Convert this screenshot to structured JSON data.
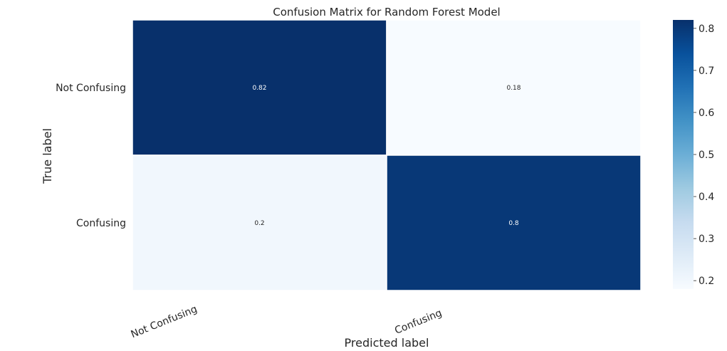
{
  "chart_data": {
    "type": "heatmap",
    "title": "Confusion Matrix for Random Forest Model",
    "xlabel": "Predicted label",
    "ylabel": "True label",
    "x_categories": [
      "Not Confusing",
      "Confusing"
    ],
    "y_categories": [
      "Not Confusing",
      "Confusing"
    ],
    "values": [
      [
        0.82,
        0.18
      ],
      [
        0.2,
        0.8
      ]
    ],
    "annotations": [
      [
        "0.82",
        "0.18"
      ],
      [
        "0.2",
        "0.8"
      ]
    ],
    "colorbar": {
      "range": [
        0.18,
        0.82
      ],
      "ticks": [
        "0.2",
        "0.3",
        "0.4",
        "0.5",
        "0.6",
        "0.7",
        "0.8"
      ],
      "tick_values": [
        0.2,
        0.3,
        0.4,
        0.5,
        0.6,
        0.7,
        0.8
      ],
      "colormap": "Blues",
      "low_color": "#f7fbff",
      "high_color": "#08306b"
    },
    "grid": false
  }
}
